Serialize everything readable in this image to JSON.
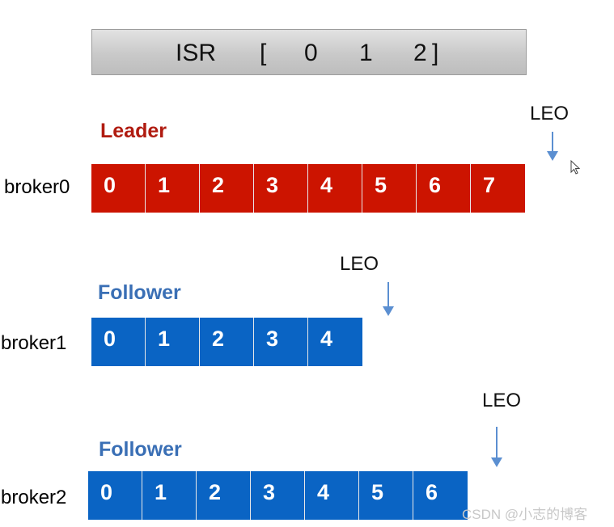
{
  "isr": {
    "label": "ISR",
    "open_bracket": "[",
    "members": [
      "0",
      "1",
      "2"
    ],
    "close_bracket": "]"
  },
  "leader": {
    "role": "Leader",
    "broker": "broker0",
    "cells": [
      "0",
      "1",
      "2",
      "3",
      "4",
      "5",
      "6",
      "7"
    ],
    "leo": "LEO"
  },
  "follower1": {
    "role": "Follower",
    "broker": "broker1",
    "cells": [
      "0",
      "1",
      "2",
      "3",
      "4"
    ],
    "leo": "LEO"
  },
  "follower2": {
    "role": "Follower",
    "broker": "broker2",
    "cells": [
      "0",
      "1",
      "2",
      "3",
      "4",
      "5",
      "6"
    ],
    "leo": "LEO"
  },
  "colors": {
    "leader": "#cc1400",
    "follower": "#0a64c4",
    "arrow": "#5b8fd1"
  },
  "watermark": "CSDN @小志的博客"
}
